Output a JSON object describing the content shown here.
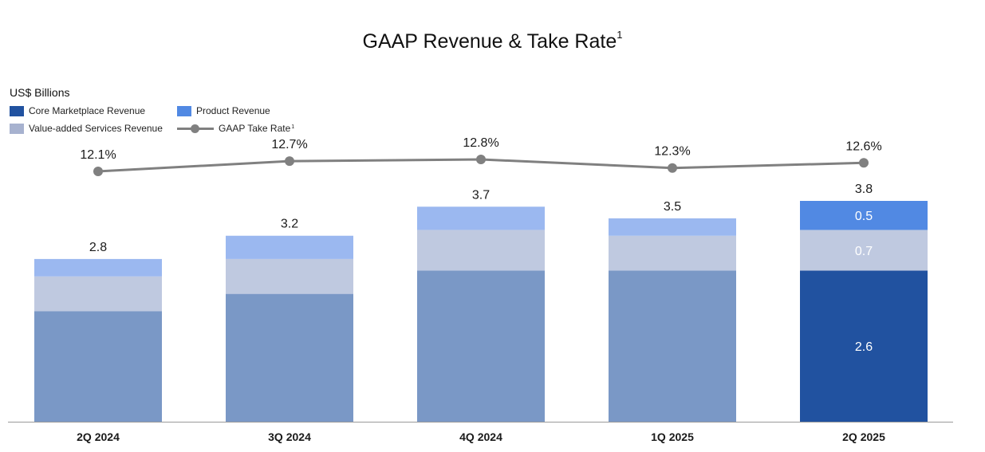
{
  "chart_data": {
    "type": "bar",
    "title": "GAAP Revenue & Take Rate",
    "title_superscript": "1",
    "unit_label": "US$ Billions",
    "categories": [
      "2Q 2024",
      "3Q 2024",
      "4Q 2024",
      "1Q 2025",
      "2Q 2025"
    ],
    "stacked": true,
    "series": [
      {
        "name": "Core Marketplace Revenue",
        "values": [
          1.9,
          2.2,
          2.6,
          2.6,
          2.6
        ],
        "color": "#7a98c6",
        "highlight_color": "#2152a0"
      },
      {
        "name": "Value-added Services Revenue",
        "values": [
          0.6,
          0.6,
          0.7,
          0.6,
          0.7
        ],
        "color": "#bfc9e0"
      },
      {
        "name": "Product Revenue",
        "values": [
          0.3,
          0.4,
          0.4,
          0.3,
          0.5
        ],
        "color": "#9bb8f0",
        "highlight_color": "#5189e3"
      }
    ],
    "totals": [
      2.8,
      3.2,
      3.7,
      3.5,
      3.8
    ],
    "total_labels": [
      "2.8",
      "3.2",
      "3.7",
      "3.5",
      "3.8"
    ],
    "highlighted_category_index": 4,
    "segment_labels_highlighted": [
      "2.6",
      "0.7",
      "0.5"
    ],
    "take_rate": {
      "name": "GAAP Take Rate",
      "name_superscript": "1",
      "values": [
        12.1,
        12.7,
        12.8,
        12.3,
        12.6
      ],
      "labels": [
        "12.1%",
        "12.7%",
        "12.8%",
        "12.3%",
        "12.6%"
      ],
      "color": "#808080"
    },
    "ylim": [
      0,
      4.2
    ],
    "grid": false,
    "legend_position": "top-left"
  }
}
